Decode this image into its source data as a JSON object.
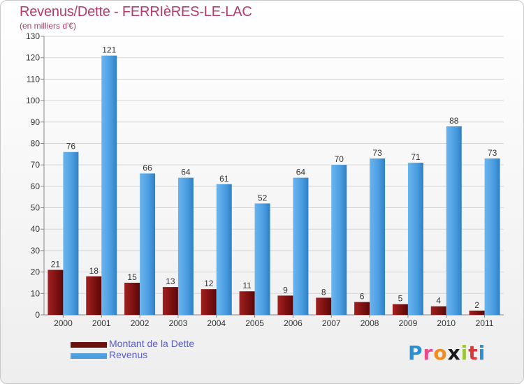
{
  "chart_data": {
    "type": "bar",
    "title": "Revenus/Dette - FERRIèRES-LE-LAC",
    "subtitle": "(en milliers d'€)",
    "xlabel": "",
    "ylabel": "",
    "categories": [
      "2000",
      "2001",
      "2002",
      "2003",
      "2004",
      "2005",
      "2006",
      "2007",
      "2008",
      "2009",
      "2010",
      "2011"
    ],
    "series": [
      {
        "name": "Montant de la Dette",
        "color": "#8b1a1a",
        "values": [
          21,
          18,
          15,
          13,
          12,
          11,
          9,
          8,
          6,
          5,
          4,
          2
        ]
      },
      {
        "name": "Revenus",
        "color": "#4d9fe0",
        "values": [
          76,
          121,
          66,
          64,
          61,
          52,
          64,
          70,
          73,
          71,
          88,
          73
        ]
      }
    ],
    "ylim": [
      0,
      130
    ],
    "yticks": [
      0,
      10,
      20,
      30,
      40,
      50,
      60,
      70,
      80,
      90,
      100,
      110,
      120,
      130
    ],
    "grid": true,
    "legend_position": "bottom-left"
  },
  "logo": {
    "letters": [
      "P",
      "r",
      "o",
      "x",
      "i",
      "t",
      "i"
    ],
    "colors": [
      "#2c8fd1",
      "#e84c8a",
      "#f28c1e",
      "#1a1a1a",
      "#9dc53b",
      "#d93a3a",
      "#2c8fd1"
    ]
  }
}
